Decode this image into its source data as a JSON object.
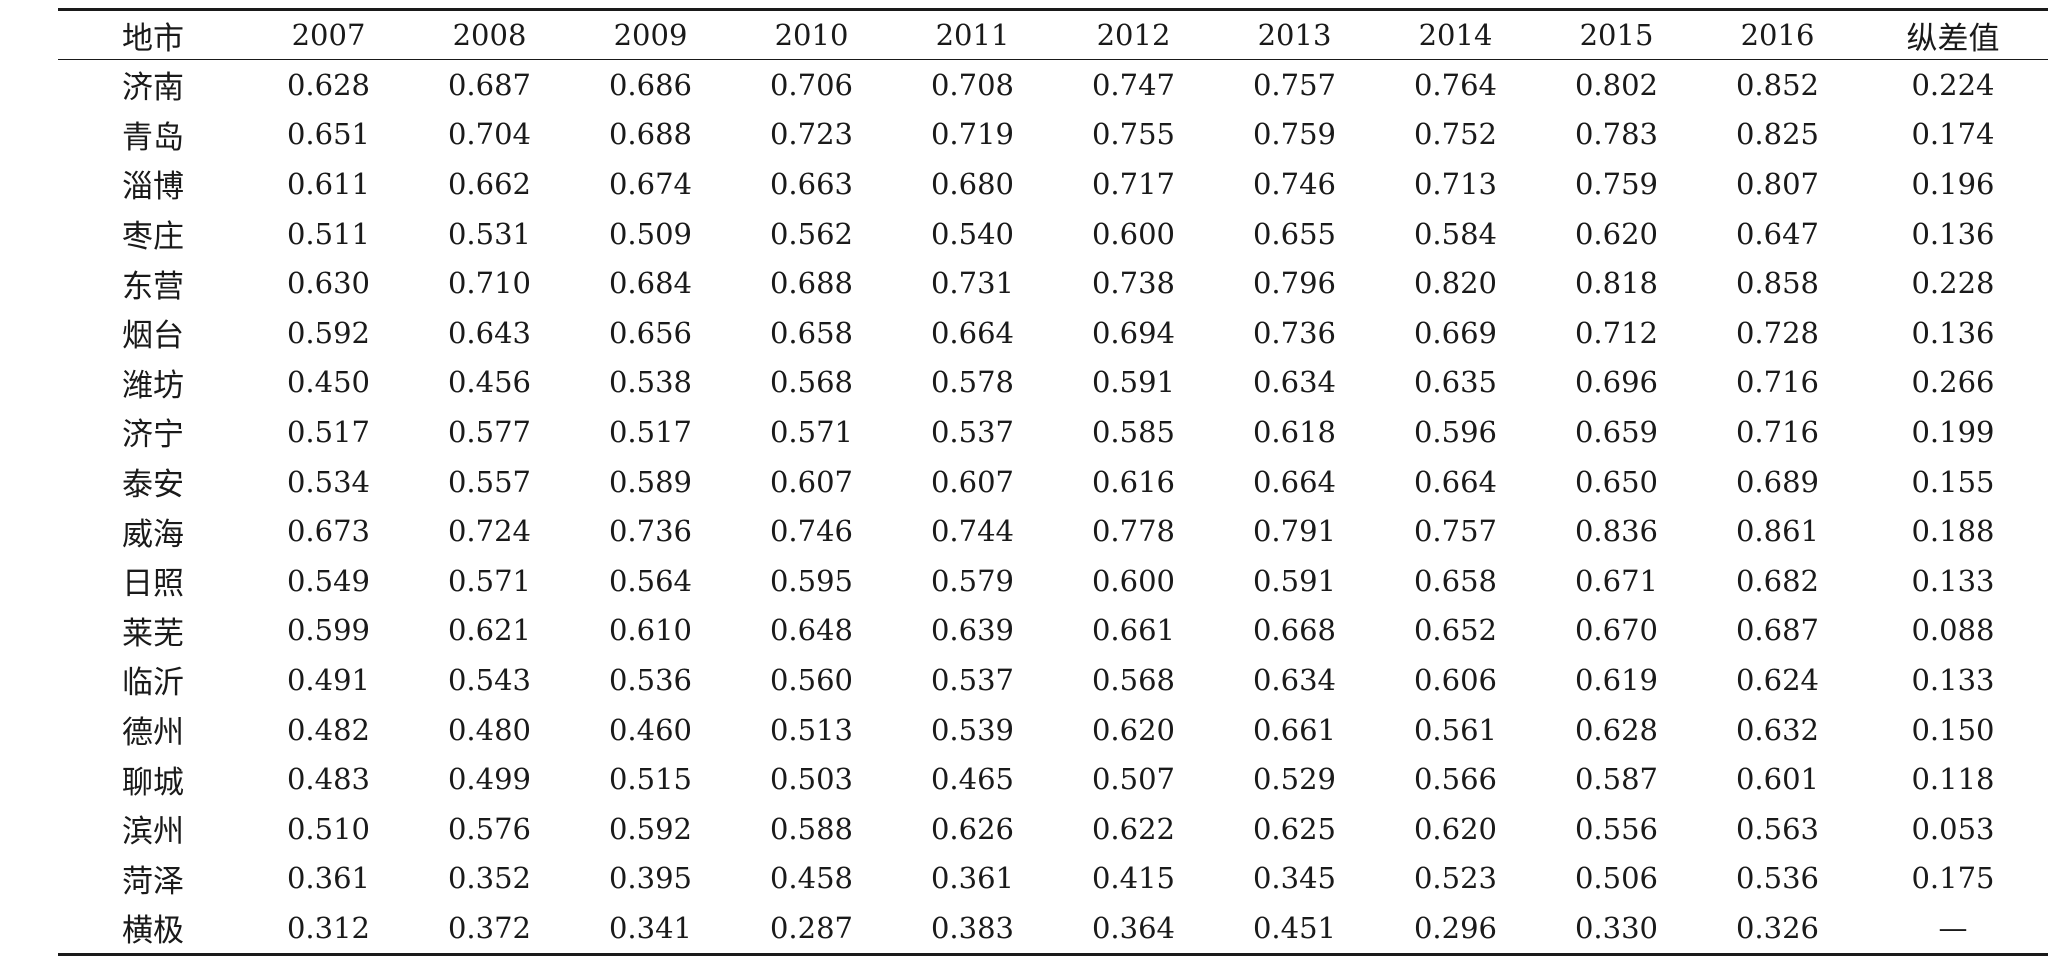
{
  "table": {
    "header": {
      "city": "地市",
      "years": [
        "2007",
        "2008",
        "2009",
        "2010",
        "2011",
        "2012",
        "2013",
        "2014",
        "2015",
        "2016"
      ],
      "range": "纵差值"
    },
    "rows": [
      {
        "city": "济南",
        "values": [
          "0.628",
          "0.687",
          "0.686",
          "0.706",
          "0.708",
          "0.747",
          "0.757",
          "0.764",
          "0.802",
          "0.852"
        ],
        "range": "0.224"
      },
      {
        "city": "青岛",
        "values": [
          "0.651",
          "0.704",
          "0.688",
          "0.723",
          "0.719",
          "0.755",
          "0.759",
          "0.752",
          "0.783",
          "0.825"
        ],
        "range": "0.174"
      },
      {
        "city": "淄博",
        "values": [
          "0.611",
          "0.662",
          "0.674",
          "0.663",
          "0.680",
          "0.717",
          "0.746",
          "0.713",
          "0.759",
          "0.807"
        ],
        "range": "0.196"
      },
      {
        "city": "枣庄",
        "values": [
          "0.511",
          "0.531",
          "0.509",
          "0.562",
          "0.540",
          "0.600",
          "0.655",
          "0.584",
          "0.620",
          "0.647"
        ],
        "range": "0.136"
      },
      {
        "city": "东营",
        "values": [
          "0.630",
          "0.710",
          "0.684",
          "0.688",
          "0.731",
          "0.738",
          "0.796",
          "0.820",
          "0.818",
          "0.858"
        ],
        "range": "0.228"
      },
      {
        "city": "烟台",
        "values": [
          "0.592",
          "0.643",
          "0.656",
          "0.658",
          "0.664",
          "0.694",
          "0.736",
          "0.669",
          "0.712",
          "0.728"
        ],
        "range": "0.136"
      },
      {
        "city": "潍坊",
        "values": [
          "0.450",
          "0.456",
          "0.538",
          "0.568",
          "0.578",
          "0.591",
          "0.634",
          "0.635",
          "0.696",
          "0.716"
        ],
        "range": "0.266"
      },
      {
        "city": "济宁",
        "values": [
          "0.517",
          "0.577",
          "0.517",
          "0.571",
          "0.537",
          "0.585",
          "0.618",
          "0.596",
          "0.659",
          "0.716"
        ],
        "range": "0.199"
      },
      {
        "city": "泰安",
        "values": [
          "0.534",
          "0.557",
          "0.589",
          "0.607",
          "0.607",
          "0.616",
          "0.664",
          "0.664",
          "0.650",
          "0.689"
        ],
        "range": "0.155"
      },
      {
        "city": "威海",
        "values": [
          "0.673",
          "0.724",
          "0.736",
          "0.746",
          "0.744",
          "0.778",
          "0.791",
          "0.757",
          "0.836",
          "0.861"
        ],
        "range": "0.188"
      },
      {
        "city": "日照",
        "values": [
          "0.549",
          "0.571",
          "0.564",
          "0.595",
          "0.579",
          "0.600",
          "0.591",
          "0.658",
          "0.671",
          "0.682"
        ],
        "range": "0.133"
      },
      {
        "city": "莱芜",
        "values": [
          "0.599",
          "0.621",
          "0.610",
          "0.648",
          "0.639",
          "0.661",
          "0.668",
          "0.652",
          "0.670",
          "0.687"
        ],
        "range": "0.088"
      },
      {
        "city": "临沂",
        "values": [
          "0.491",
          "0.543",
          "0.536",
          "0.560",
          "0.537",
          "0.568",
          "0.634",
          "0.606",
          "0.619",
          "0.624"
        ],
        "range": "0.133"
      },
      {
        "city": "德州",
        "values": [
          "0.482",
          "0.480",
          "0.460",
          "0.513",
          "0.539",
          "0.620",
          "0.661",
          "0.561",
          "0.628",
          "0.632"
        ],
        "range": "0.150"
      },
      {
        "city": "聊城",
        "values": [
          "0.483",
          "0.499",
          "0.515",
          "0.503",
          "0.465",
          "0.507",
          "0.529",
          "0.566",
          "0.587",
          "0.601"
        ],
        "range": "0.118"
      },
      {
        "city": "滨州",
        "values": [
          "0.510",
          "0.576",
          "0.592",
          "0.588",
          "0.626",
          "0.622",
          "0.625",
          "0.620",
          "0.556",
          "0.563"
        ],
        "range": "0.053"
      },
      {
        "city": "菏泽",
        "values": [
          "0.361",
          "0.352",
          "0.395",
          "0.458",
          "0.361",
          "0.415",
          "0.345",
          "0.523",
          "0.506",
          "0.536"
        ],
        "range": "0.175"
      },
      {
        "city": "横极",
        "values": [
          "0.312",
          "0.372",
          "0.341",
          "0.287",
          "0.383",
          "0.364",
          "0.451",
          "0.296",
          "0.330",
          "0.326"
        ],
        "range": "—"
      }
    ]
  }
}
